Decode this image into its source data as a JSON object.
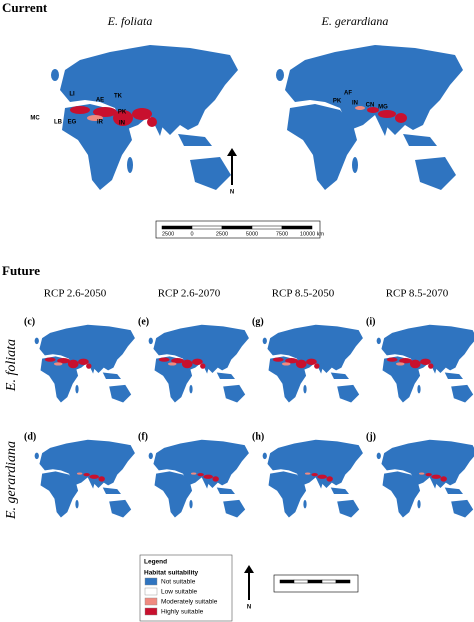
{
  "current": {
    "title": "Current",
    "maps": [
      {
        "species": "E. foliata",
        "labels": [
          "LI",
          "MC",
          "LB",
          "EG",
          "AE",
          "IR",
          "TK",
          "PK",
          "IN"
        ]
      },
      {
        "species": "E. gerardiana",
        "labels": [
          "AF",
          "PK",
          "IN",
          "CN",
          "MG"
        ]
      }
    ]
  },
  "scale_bar": {
    "ticks": [
      "2500",
      "0",
      "2500",
      "5000",
      "7500",
      "10000 km"
    ]
  },
  "north": "N",
  "future": {
    "title": "Future",
    "columns": [
      "RCP 2.6-2050",
      "RCP 2.6-2070",
      "RCP 8.5-2050",
      "RCP 8.5-2070"
    ],
    "rows": [
      {
        "species": "E. foliata",
        "panels": [
          "(c)",
          "(e)",
          "(g)",
          "(i)"
        ]
      },
      {
        "species": "E. gerardiana",
        "panels": [
          "(d)",
          "(f)",
          "(h)",
          "(j)"
        ]
      }
    ]
  },
  "legend": {
    "title": "Legend",
    "subtitle": "Habitat suitability",
    "items": [
      "Not suitable",
      "Low suitable",
      "Moderately suitable",
      "Highly suitable"
    ]
  }
}
